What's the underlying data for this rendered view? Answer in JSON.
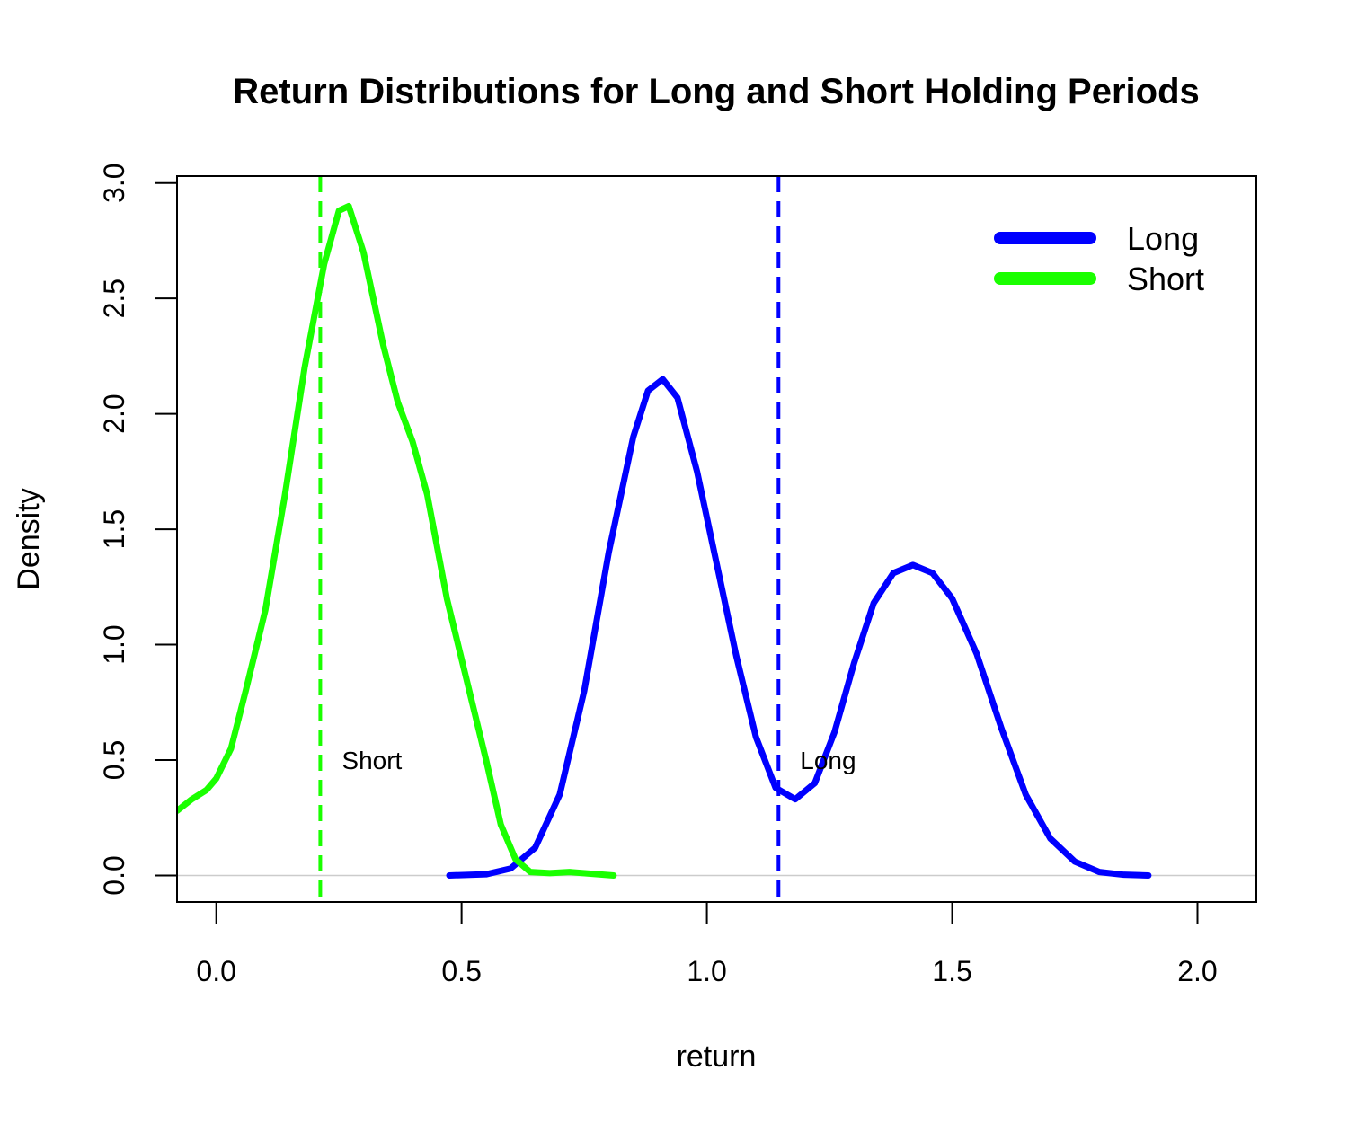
{
  "chart_data": {
    "type": "line",
    "title": "Return Distributions for Long and Short Holding Periods",
    "xlabel": "return",
    "ylabel": "Density",
    "xlim": [
      -0.08,
      2.12
    ],
    "ylim": [
      -0.115,
      3.03
    ],
    "x_ticks": [
      0.0,
      0.5,
      1.0,
      1.5,
      2.0
    ],
    "x_tick_labels": [
      "0.0",
      "0.5",
      "1.0",
      "1.5",
      "2.0"
    ],
    "y_ticks": [
      0.0,
      0.5,
      1.0,
      1.5,
      2.0,
      2.5,
      3.0
    ],
    "y_tick_labels": [
      "0.0",
      "0.5",
      "1.0",
      "1.5",
      "2.0",
      "2.5",
      "3.0"
    ],
    "grid": false,
    "legend": {
      "position": "top-right",
      "entries": [
        {
          "label": "Long",
          "color": "#0000FF"
        },
        {
          "label": "Short",
          "color": "#1AFF00"
        }
      ]
    },
    "series": [
      {
        "name": "Long",
        "color": "#0000FF",
        "points": [
          [
            0.475,
            0.0
          ],
          [
            0.55,
            0.005
          ],
          [
            0.6,
            0.03
          ],
          [
            0.65,
            0.12
          ],
          [
            0.7,
            0.35
          ],
          [
            0.75,
            0.8
          ],
          [
            0.8,
            1.4
          ],
          [
            0.85,
            1.9
          ],
          [
            0.88,
            2.1
          ],
          [
            0.91,
            2.15
          ],
          [
            0.94,
            2.07
          ],
          [
            0.98,
            1.75
          ],
          [
            1.02,
            1.35
          ],
          [
            1.06,
            0.95
          ],
          [
            1.1,
            0.6
          ],
          [
            1.14,
            0.38
          ],
          [
            1.18,
            0.33
          ],
          [
            1.22,
            0.4
          ],
          [
            1.26,
            0.62
          ],
          [
            1.3,
            0.92
          ],
          [
            1.34,
            1.18
          ],
          [
            1.38,
            1.31
          ],
          [
            1.42,
            1.345
          ],
          [
            1.46,
            1.31
          ],
          [
            1.5,
            1.2
          ],
          [
            1.55,
            0.96
          ],
          [
            1.6,
            0.64
          ],
          [
            1.65,
            0.35
          ],
          [
            1.7,
            0.16
          ],
          [
            1.75,
            0.06
          ],
          [
            1.8,
            0.015
          ],
          [
            1.85,
            0.003
          ],
          [
            1.9,
            0.0
          ]
        ]
      },
      {
        "name": "Short",
        "color": "#1AFF00",
        "points": [
          [
            -0.08,
            0.28
          ],
          [
            -0.05,
            0.33
          ],
          [
            -0.02,
            0.37
          ],
          [
            0.0,
            0.42
          ],
          [
            0.03,
            0.55
          ],
          [
            0.06,
            0.8
          ],
          [
            0.1,
            1.15
          ],
          [
            0.14,
            1.65
          ],
          [
            0.18,
            2.2
          ],
          [
            0.22,
            2.65
          ],
          [
            0.25,
            2.88
          ],
          [
            0.27,
            2.9
          ],
          [
            0.3,
            2.7
          ],
          [
            0.34,
            2.3
          ],
          [
            0.37,
            2.05
          ],
          [
            0.4,
            1.88
          ],
          [
            0.43,
            1.65
          ],
          [
            0.47,
            1.2
          ],
          [
            0.51,
            0.85
          ],
          [
            0.55,
            0.5
          ],
          [
            0.58,
            0.22
          ],
          [
            0.61,
            0.07
          ],
          [
            0.64,
            0.015
          ],
          [
            0.68,
            0.01
          ],
          [
            0.72,
            0.015
          ],
          [
            0.76,
            0.008
          ],
          [
            0.81,
            0.0
          ]
        ]
      }
    ],
    "reference_lines": [
      {
        "name": "Long",
        "x": 1.146,
        "color": "#0000FF",
        "style": "dashed",
        "label": "Long",
        "label_y": 0.5
      },
      {
        "name": "Short",
        "x": 0.212,
        "color": "#1AFF00",
        "style": "dashed",
        "label": "Short",
        "label_y": 0.5
      }
    ]
  }
}
